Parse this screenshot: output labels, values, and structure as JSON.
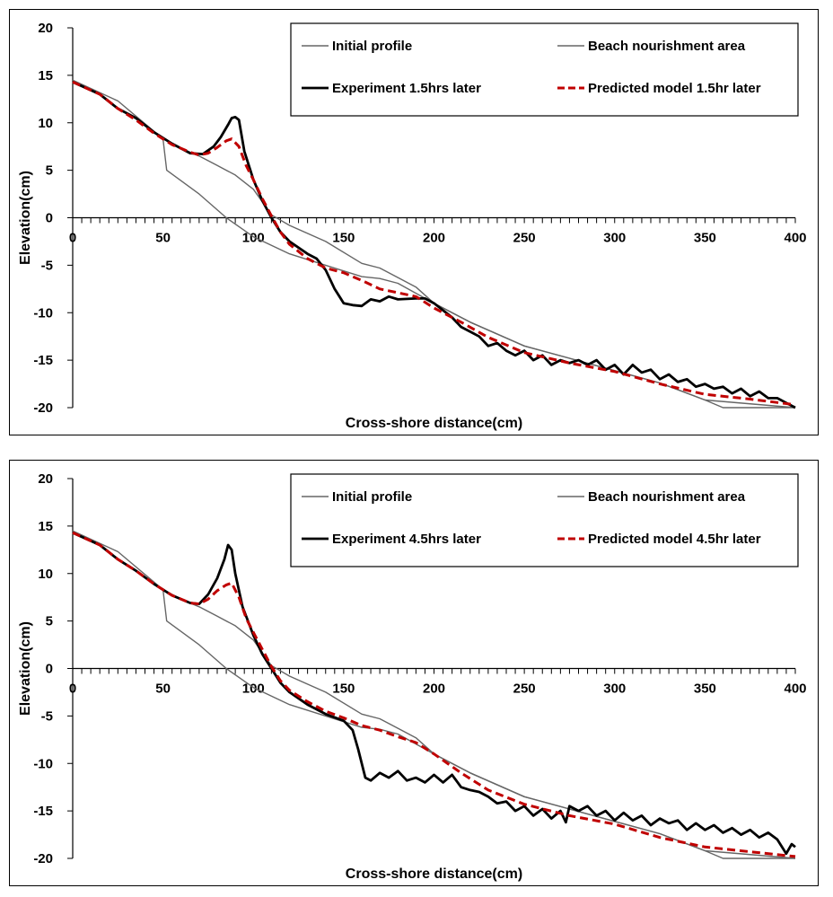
{
  "chart_data": [
    {
      "type": "line",
      "xlabel": "Cross-shore distance(cm)",
      "ylabel": "Elevation(cm)",
      "xlim": [
        0,
        400
      ],
      "ylim": [
        -20,
        20
      ],
      "x_ticks": [
        "0",
        "50",
        "100",
        "150",
        "200",
        "250",
        "300",
        "350",
        "400"
      ],
      "y_ticks": [
        "20",
        "15",
        "10",
        "5",
        "0",
        "-5",
        "-10",
        "-15",
        "-20"
      ],
      "grid": false,
      "legend_position": "top-right",
      "colors": {
        "initial": "#666666",
        "nourishment": "#666666",
        "experiment": "#000000",
        "predicted": "#c00000"
      },
      "series": [
        {
          "name": "Initial profile",
          "style": "thin-gray",
          "x": [
            0,
            25,
            50,
            52,
            70,
            85,
            100,
            120,
            140,
            160,
            170,
            180,
            200,
            220,
            250,
            275,
            300,
            325,
            350,
            360,
            380,
            400
          ],
          "y": [
            14.5,
            12.3,
            8.3,
            5.0,
            2.5,
            0.0,
            -2.0,
            -3.8,
            -5.0,
            -6.2,
            -6.4,
            -6.9,
            -9.0,
            -11.0,
            -13.5,
            -14.8,
            -16.1,
            -17.4,
            -19.2,
            -20.0,
            -20.0,
            -20.0
          ]
        },
        {
          "name": "Beach nourishment area",
          "style": "thin-gray",
          "x": [
            50,
            60,
            70,
            80,
            90,
            100,
            110,
            120,
            140,
            160,
            170,
            180,
            190,
            200,
            220,
            250,
            275,
            300,
            325,
            350,
            400
          ],
          "y": [
            8.3,
            7.3,
            6.5,
            5.5,
            4.5,
            3.0,
            0.3,
            -0.8,
            -2.5,
            -4.8,
            -5.3,
            -6.3,
            -7.3,
            -9.0,
            -11.0,
            -13.5,
            -14.8,
            -16.1,
            -17.4,
            -19.2,
            -20.0
          ]
        },
        {
          "name": "Experiment 1.5hrs later",
          "style": "thick-black",
          "x": [
            0,
            15,
            25,
            35,
            45,
            55,
            65,
            72,
            78,
            82,
            86,
            88,
            90,
            92,
            95,
            100,
            105,
            110,
            115,
            120,
            130,
            135,
            140,
            145,
            150,
            155,
            160,
            165,
            170,
            175,
            180,
            190,
            195,
            200,
            210,
            215,
            220,
            225,
            230,
            235,
            240,
            245,
            250,
            255,
            260,
            265,
            270,
            275,
            280,
            285,
            290,
            295,
            300,
            305,
            310,
            315,
            320,
            325,
            330,
            335,
            340,
            345,
            350,
            355,
            360,
            365,
            370,
            375,
            380,
            385,
            390,
            395,
            400
          ],
          "y": [
            14.3,
            13.0,
            11.5,
            10.5,
            9.0,
            7.8,
            6.8,
            6.7,
            7.5,
            8.5,
            9.8,
            10.5,
            10.6,
            10.3,
            7.0,
            4.0,
            1.8,
            0.0,
            -1.5,
            -2.5,
            -3.8,
            -4.3,
            -5.5,
            -7.5,
            -9.0,
            -9.2,
            -9.3,
            -8.6,
            -8.8,
            -8.3,
            -8.6,
            -8.5,
            -8.5,
            -9.0,
            -10.5,
            -11.5,
            -12.0,
            -12.5,
            -13.5,
            -13.2,
            -14.0,
            -14.5,
            -14.0,
            -15.0,
            -14.5,
            -15.5,
            -15.0,
            -15.3,
            -15.0,
            -15.5,
            -15.0,
            -16.0,
            -15.5,
            -16.5,
            -15.5,
            -16.3,
            -16.0,
            -17.0,
            -16.5,
            -17.3,
            -17.0,
            -17.8,
            -17.5,
            -18.0,
            -17.8,
            -18.5,
            -18.0,
            -18.8,
            -18.3,
            -19.0,
            -19.0,
            -19.5,
            -20.0
          ]
        },
        {
          "name": "Predicted model 1.5hr later",
          "style": "dashed-red",
          "x": [
            0,
            15,
            25,
            35,
            45,
            55,
            65,
            70,
            75,
            80,
            85,
            88,
            92,
            96,
            100,
            105,
            110,
            115,
            120,
            130,
            140,
            150,
            160,
            170,
            180,
            190,
            200,
            215,
            230,
            250,
            275,
            300,
            325,
            350,
            375,
            400
          ],
          "y": [
            14.3,
            13.0,
            11.5,
            10.3,
            8.9,
            7.7,
            6.9,
            6.6,
            6.8,
            7.4,
            8.1,
            8.3,
            7.5,
            5.5,
            4.0,
            2.0,
            0.2,
            -1.5,
            -2.8,
            -4.3,
            -5.3,
            -5.8,
            -6.6,
            -7.5,
            -7.9,
            -8.3,
            -9.5,
            -11.0,
            -12.6,
            -14.2,
            -15.3,
            -16.2,
            -17.5,
            -18.6,
            -19.1,
            -19.7
          ]
        }
      ],
      "legend": [
        {
          "label": "Initial profile",
          "style": "thin-gray"
        },
        {
          "label": "Beach nourishment area",
          "style": "thin-gray"
        },
        {
          "label": "Experiment 1.5hrs later",
          "style": "thick-black"
        },
        {
          "label": "Predicted model 1.5hr later",
          "style": "dashed-red"
        }
      ]
    },
    {
      "type": "line",
      "xlabel": "Cross-shore distance(cm)",
      "ylabel": "Elevation(cm)",
      "xlim": [
        0,
        400
      ],
      "ylim": [
        -20,
        20
      ],
      "x_ticks": [
        "0",
        "50",
        "100",
        "150",
        "200",
        "250",
        "300",
        "350",
        "400"
      ],
      "y_ticks": [
        "20",
        "15",
        "10",
        "5",
        "0",
        "-5",
        "-10",
        "-15",
        "-20"
      ],
      "grid": false,
      "legend_position": "top-right",
      "colors": {
        "initial": "#666666",
        "nourishment": "#666666",
        "experiment": "#000000",
        "predicted": "#c00000"
      },
      "series": [
        {
          "name": "Initial profile",
          "style": "thin-gray",
          "x": [
            0,
            25,
            50,
            52,
            70,
            85,
            100,
            120,
            140,
            160,
            170,
            180,
            200,
            220,
            250,
            275,
            300,
            325,
            350,
            360,
            380,
            400
          ],
          "y": [
            14.5,
            12.3,
            8.3,
            5.0,
            2.5,
            0.0,
            -2.0,
            -3.8,
            -5.0,
            -6.2,
            -6.4,
            -6.9,
            -9.0,
            -11.0,
            -13.5,
            -14.8,
            -16.1,
            -17.4,
            -19.2,
            -20.0,
            -20.0,
            -20.0
          ]
        },
        {
          "name": "Beach nourishment area",
          "style": "thin-gray",
          "x": [
            50,
            60,
            70,
            80,
            90,
            100,
            110,
            120,
            140,
            160,
            170,
            180,
            190,
            200,
            220,
            250,
            275,
            300,
            325,
            350,
            400
          ],
          "y": [
            8.3,
            7.3,
            6.5,
            5.5,
            4.5,
            3.0,
            0.3,
            -0.8,
            -2.5,
            -4.8,
            -5.3,
            -6.3,
            -7.3,
            -9.0,
            -11.0,
            -13.5,
            -14.8,
            -16.1,
            -17.4,
            -19.2,
            -20.0
          ]
        },
        {
          "name": "Experiment 4.5hrs later",
          "style": "thick-black",
          "x": [
            0,
            15,
            25,
            35,
            45,
            55,
            65,
            70,
            75,
            80,
            84,
            86,
            88,
            90,
            94,
            100,
            105,
            110,
            115,
            120,
            130,
            140,
            150,
            155,
            158,
            162,
            165,
            170,
            175,
            180,
            185,
            190,
            195,
            200,
            205,
            210,
            215,
            220,
            225,
            230,
            235,
            240,
            245,
            250,
            255,
            260,
            265,
            270,
            273,
            275,
            280,
            285,
            290,
            295,
            300,
            305,
            310,
            315,
            320,
            325,
            330,
            335,
            340,
            345,
            350,
            355,
            360,
            365,
            370,
            375,
            380,
            385,
            390,
            395,
            398,
            400
          ],
          "y": [
            14.3,
            13.0,
            11.5,
            10.3,
            8.9,
            7.7,
            6.9,
            6.8,
            7.8,
            9.5,
            11.5,
            13.0,
            12.5,
            10.0,
            6.5,
            3.5,
            1.5,
            0.0,
            -1.5,
            -2.5,
            -3.8,
            -4.8,
            -5.5,
            -6.5,
            -8.5,
            -11.5,
            -11.8,
            -11.0,
            -11.5,
            -10.8,
            -11.8,
            -11.5,
            -12.0,
            -11.2,
            -12.0,
            -11.2,
            -12.5,
            -12.8,
            -13.0,
            -13.5,
            -14.2,
            -14.0,
            -15.0,
            -14.5,
            -15.5,
            -14.8,
            -15.8,
            -15.0,
            -16.2,
            -14.5,
            -15.0,
            -14.5,
            -15.5,
            -15.0,
            -16.0,
            -15.2,
            -16.0,
            -15.5,
            -16.5,
            -15.8,
            -16.3,
            -16.0,
            -17.0,
            -16.3,
            -17.0,
            -16.5,
            -17.3,
            -16.8,
            -17.5,
            -17.0,
            -17.8,
            -17.3,
            -18.0,
            -19.5,
            -18.5,
            -18.8
          ]
        },
        {
          "name": "Predicted model 4.5hr later",
          "style": "dashed-red",
          "x": [
            0,
            15,
            25,
            35,
            45,
            55,
            65,
            70,
            75,
            80,
            85,
            88,
            92,
            96,
            100,
            105,
            110,
            115,
            120,
            130,
            140,
            150,
            160,
            170,
            180,
            190,
            200,
            215,
            230,
            250,
            275,
            300,
            325,
            350,
            375,
            400
          ],
          "y": [
            14.3,
            13.0,
            11.5,
            10.3,
            8.9,
            7.7,
            6.9,
            6.8,
            7.3,
            8.2,
            8.8,
            9.0,
            7.5,
            5.3,
            3.8,
            2.0,
            0.2,
            -1.3,
            -2.3,
            -3.5,
            -4.5,
            -5.2,
            -6.0,
            -6.5,
            -7.2,
            -7.8,
            -9.0,
            -11.0,
            -12.8,
            -14.3,
            -15.5,
            -16.4,
            -17.8,
            -18.8,
            -19.3,
            -19.8
          ]
        }
      ],
      "legend": [
        {
          "label": "Initial profile",
          "style": "thin-gray"
        },
        {
          "label": "Beach nourishment area",
          "style": "thin-gray"
        },
        {
          "label": "Experiment 4.5hrs later",
          "style": "thick-black"
        },
        {
          "label": "Predicted model 4.5hr later",
          "style": "dashed-red"
        }
      ]
    }
  ]
}
